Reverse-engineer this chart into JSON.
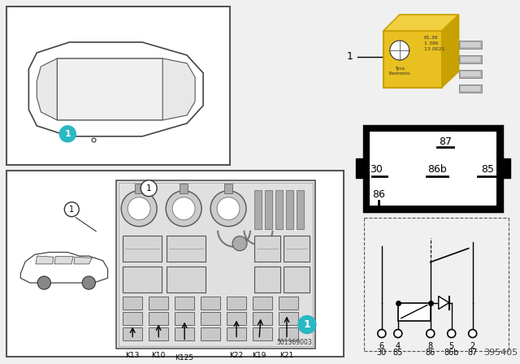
{
  "bg_color": "#f0f0f0",
  "part_number_bottom": "395405",
  "part_number_fuse": "501369003",
  "cyan_badge": "#29b8c4",
  "yellow_relay": "#e8c020",
  "fuse_labels": [
    "K13",
    "K10",
    "K125",
    "K22",
    "K19",
    "K21"
  ],
  "pin_box_labels": [
    "87",
    "30",
    "86b",
    "85",
    "86"
  ],
  "schematic_pin_nums": [
    "6",
    "4",
    "8",
    "5",
    "2"
  ],
  "schematic_pin_names": [
    "30",
    "85",
    "86",
    "86b",
    "87"
  ]
}
